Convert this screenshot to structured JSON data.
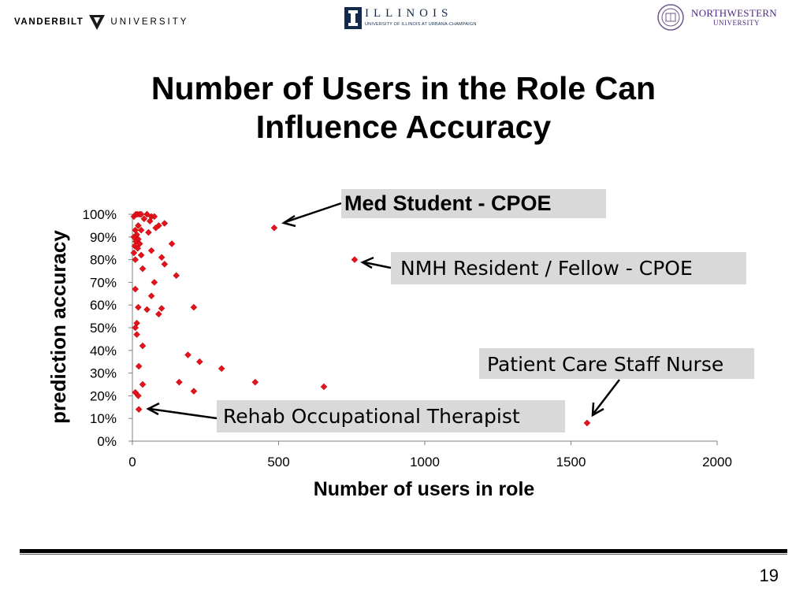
{
  "logos": {
    "vanderbilt": {
      "word1": "VANDERBILT",
      "word2": "UNIVERSITY"
    },
    "illinois": {
      "name": "ILLINOIS",
      "sub": "UNIVERSITY OF ILLINOIS AT URBANA-CHAMPAIGN"
    },
    "northwestern": {
      "name": "NORTHWESTERN",
      "sub": "UNIVERSITY"
    }
  },
  "slide": {
    "title_line1": "Number of Users in the Role Can",
    "title_line2": "Influence Accuracy",
    "page_number": "19"
  },
  "callouts": {
    "med_student": "Med Student - CPOE",
    "nmh_resident": "NMH Resident / Fellow - CPOE",
    "nurse": "Patient Care Staff Nurse",
    "rehab": "Rehab Occupational Therapist"
  },
  "colors": {
    "marker": "#e3121b",
    "callout_bg": "#d9d9d9",
    "axis": "#7f7f7f"
  },
  "chart_data": {
    "type": "scatter",
    "xlabel": "Number of users in role",
    "ylabel": "prediction accuracy",
    "xlim": [
      0,
      2000
    ],
    "ylim": [
      0,
      1
    ],
    "xticks": [
      "0",
      "500",
      "1000",
      "1500",
      "2000"
    ],
    "yticks": [
      "0%",
      "10%",
      "20%",
      "30%",
      "40%",
      "50%",
      "60%",
      "70%",
      "80%",
      "90%",
      "100%"
    ],
    "grid": false,
    "legend": "none",
    "points": [
      {
        "x": 5,
        "y": 0.99
      },
      {
        "x": 12,
        "y": 1.0
      },
      {
        "x": 18,
        "y": 1.0
      },
      {
        "x": 25,
        "y": 1.0
      },
      {
        "x": 30,
        "y": 1.0
      },
      {
        "x": 50,
        "y": 1.0
      },
      {
        "x": 65,
        "y": 0.99
      },
      {
        "x": 40,
        "y": 0.98
      },
      {
        "x": 75,
        "y": 0.99
      },
      {
        "x": 60,
        "y": 0.97
      },
      {
        "x": 110,
        "y": 0.96
      },
      {
        "x": 90,
        "y": 0.95
      },
      {
        "x": 20,
        "y": 0.95
      },
      {
        "x": 80,
        "y": 0.94
      },
      {
        "x": 485,
        "y": 0.94
      },
      {
        "x": 10,
        "y": 0.93
      },
      {
        "x": 30,
        "y": 0.93
      },
      {
        "x": 55,
        "y": 0.92
      },
      {
        "x": 15,
        "y": 0.91
      },
      {
        "x": 5,
        "y": 0.9
      },
      {
        "x": 20,
        "y": 0.89
      },
      {
        "x": 12,
        "y": 0.88
      },
      {
        "x": 25,
        "y": 0.87
      },
      {
        "x": 135,
        "y": 0.87
      },
      {
        "x": 8,
        "y": 0.86
      },
      {
        "x": 18,
        "y": 0.85
      },
      {
        "x": 65,
        "y": 0.84
      },
      {
        "x": 5,
        "y": 0.83
      },
      {
        "x": 30,
        "y": 0.82
      },
      {
        "x": 100,
        "y": 0.81
      },
      {
        "x": 10,
        "y": 0.8
      },
      {
        "x": 760,
        "y": 0.8
      },
      {
        "x": 110,
        "y": 0.78
      },
      {
        "x": 35,
        "y": 0.76
      },
      {
        "x": 150,
        "y": 0.73
      },
      {
        "x": 75,
        "y": 0.7
      },
      {
        "x": 10,
        "y": 0.67
      },
      {
        "x": 65,
        "y": 0.64
      },
      {
        "x": 20,
        "y": 0.59
      },
      {
        "x": 210,
        "y": 0.59
      },
      {
        "x": 100,
        "y": 0.585
      },
      {
        "x": 50,
        "y": 0.58
      },
      {
        "x": 90,
        "y": 0.56
      },
      {
        "x": 15,
        "y": 0.52
      },
      {
        "x": 10,
        "y": 0.5
      },
      {
        "x": 15,
        "y": 0.47
      },
      {
        "x": 35,
        "y": 0.42
      },
      {
        "x": 190,
        "y": 0.38
      },
      {
        "x": 230,
        "y": 0.35
      },
      {
        "x": 22,
        "y": 0.33
      },
      {
        "x": 305,
        "y": 0.32
      },
      {
        "x": 160,
        "y": 0.26
      },
      {
        "x": 420,
        "y": 0.26
      },
      {
        "x": 35,
        "y": 0.25
      },
      {
        "x": 655,
        "y": 0.24
      },
      {
        "x": 210,
        "y": 0.22
      },
      {
        "x": 10,
        "y": 0.215
      },
      {
        "x": 20,
        "y": 0.2
      },
      {
        "x": 22,
        "y": 0.14
      },
      {
        "x": 1555,
        "y": 0.08
      }
    ]
  }
}
